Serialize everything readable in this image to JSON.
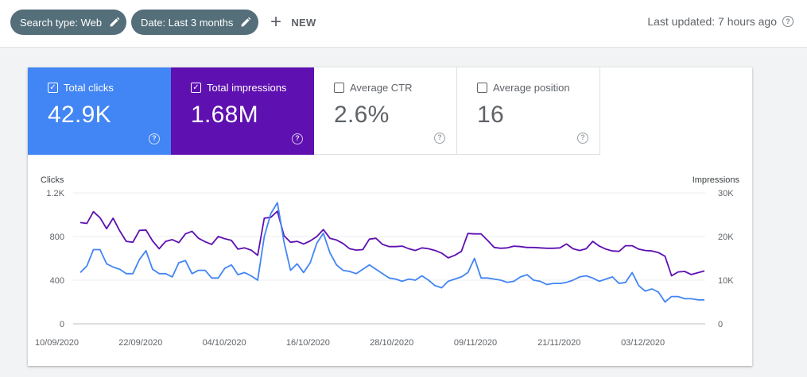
{
  "filters": {
    "search_type": "Search type: Web",
    "date": "Date: Last 3 months",
    "new_label": "NEW"
  },
  "status": {
    "last_updated": "Last updated: 7 hours ago"
  },
  "metrics": {
    "clicks": {
      "label": "Total clicks",
      "value": "42.9K",
      "checked": true,
      "color": "#4285f4"
    },
    "impressions": {
      "label": "Total impressions",
      "value": "1.68M",
      "checked": true,
      "color": "#5e10b0"
    },
    "ctr": {
      "label": "Average CTR",
      "value": "2.6%",
      "checked": false
    },
    "position": {
      "label": "Average position",
      "value": "16",
      "checked": false
    }
  },
  "chart_data": {
    "type": "line",
    "left_axis": {
      "label": "Clicks",
      "ticks": [
        "1.2K",
        "800",
        "400",
        "0"
      ],
      "range": [
        0,
        1200
      ]
    },
    "right_axis": {
      "label": "Impressions",
      "ticks": [
        "30K",
        "20K",
        "10K",
        "0"
      ],
      "range": [
        0,
        30000
      ]
    },
    "x_ticks": [
      "10/09/2020",
      "22/09/2020",
      "04/10/2020",
      "16/10/2020",
      "28/10/2020",
      "09/11/2020",
      "21/11/2020",
      "03/12/2020"
    ],
    "series": [
      {
        "name": "Clicks",
        "axis": "left",
        "color": "#4285f4",
        "values": [
          470,
          530,
          680,
          680,
          550,
          520,
          500,
          460,
          460,
          590,
          670,
          500,
          460,
          460,
          430,
          560,
          580,
          460,
          490,
          490,
          420,
          420,
          510,
          540,
          450,
          470,
          440,
          400,
          800,
          1010,
          1110,
          750,
          490,
          550,
          470,
          560,
          740,
          830,
          650,
          540,
          490,
          480,
          460,
          500,
          540,
          500,
          460,
          420,
          410,
          390,
          410,
          400,
          440,
          400,
          350,
          330,
          390,
          410,
          430,
          470,
          600,
          420,
          420,
          410,
          400,
          380,
          390,
          430,
          450,
          400,
          390,
          360,
          370,
          370,
          380,
          400,
          430,
          440,
          420,
          390,
          410,
          430,
          370,
          380,
          470,
          350,
          300,
          320,
          290,
          200,
          250,
          250,
          230,
          230,
          220,
          220
        ]
      },
      {
        "name": "Impressions",
        "axis": "right",
        "color": "#5e10b0",
        "values": [
          23200,
          23000,
          25700,
          24300,
          21800,
          24200,
          21300,
          18900,
          18700,
          21400,
          21500,
          19000,
          17200,
          18900,
          19300,
          18600,
          20600,
          21200,
          19600,
          18800,
          18200,
          20000,
          19500,
          19100,
          17100,
          17400,
          16900,
          15700,
          24200,
          24400,
          25800,
          20200,
          18700,
          18900,
          18300,
          19000,
          20000,
          21600,
          19600,
          19200,
          18400,
          17200,
          16900,
          17000,
          19400,
          19600,
          18200,
          17700,
          17700,
          17800,
          17200,
          16800,
          17400,
          17200,
          16800,
          16200,
          15100,
          15700,
          16600,
          20700,
          20600,
          20600,
          19100,
          17500,
          17300,
          17400,
          17800,
          17700,
          17500,
          17500,
          17400,
          17300,
          17300,
          17400,
          18300,
          17200,
          16800,
          17200,
          18900,
          17800,
          17100,
          16700,
          16600,
          17900,
          17900,
          17100,
          16800,
          16700,
          16300,
          15500,
          11000,
          11900,
          12000,
          11300,
          11700,
          12100
        ]
      }
    ]
  }
}
